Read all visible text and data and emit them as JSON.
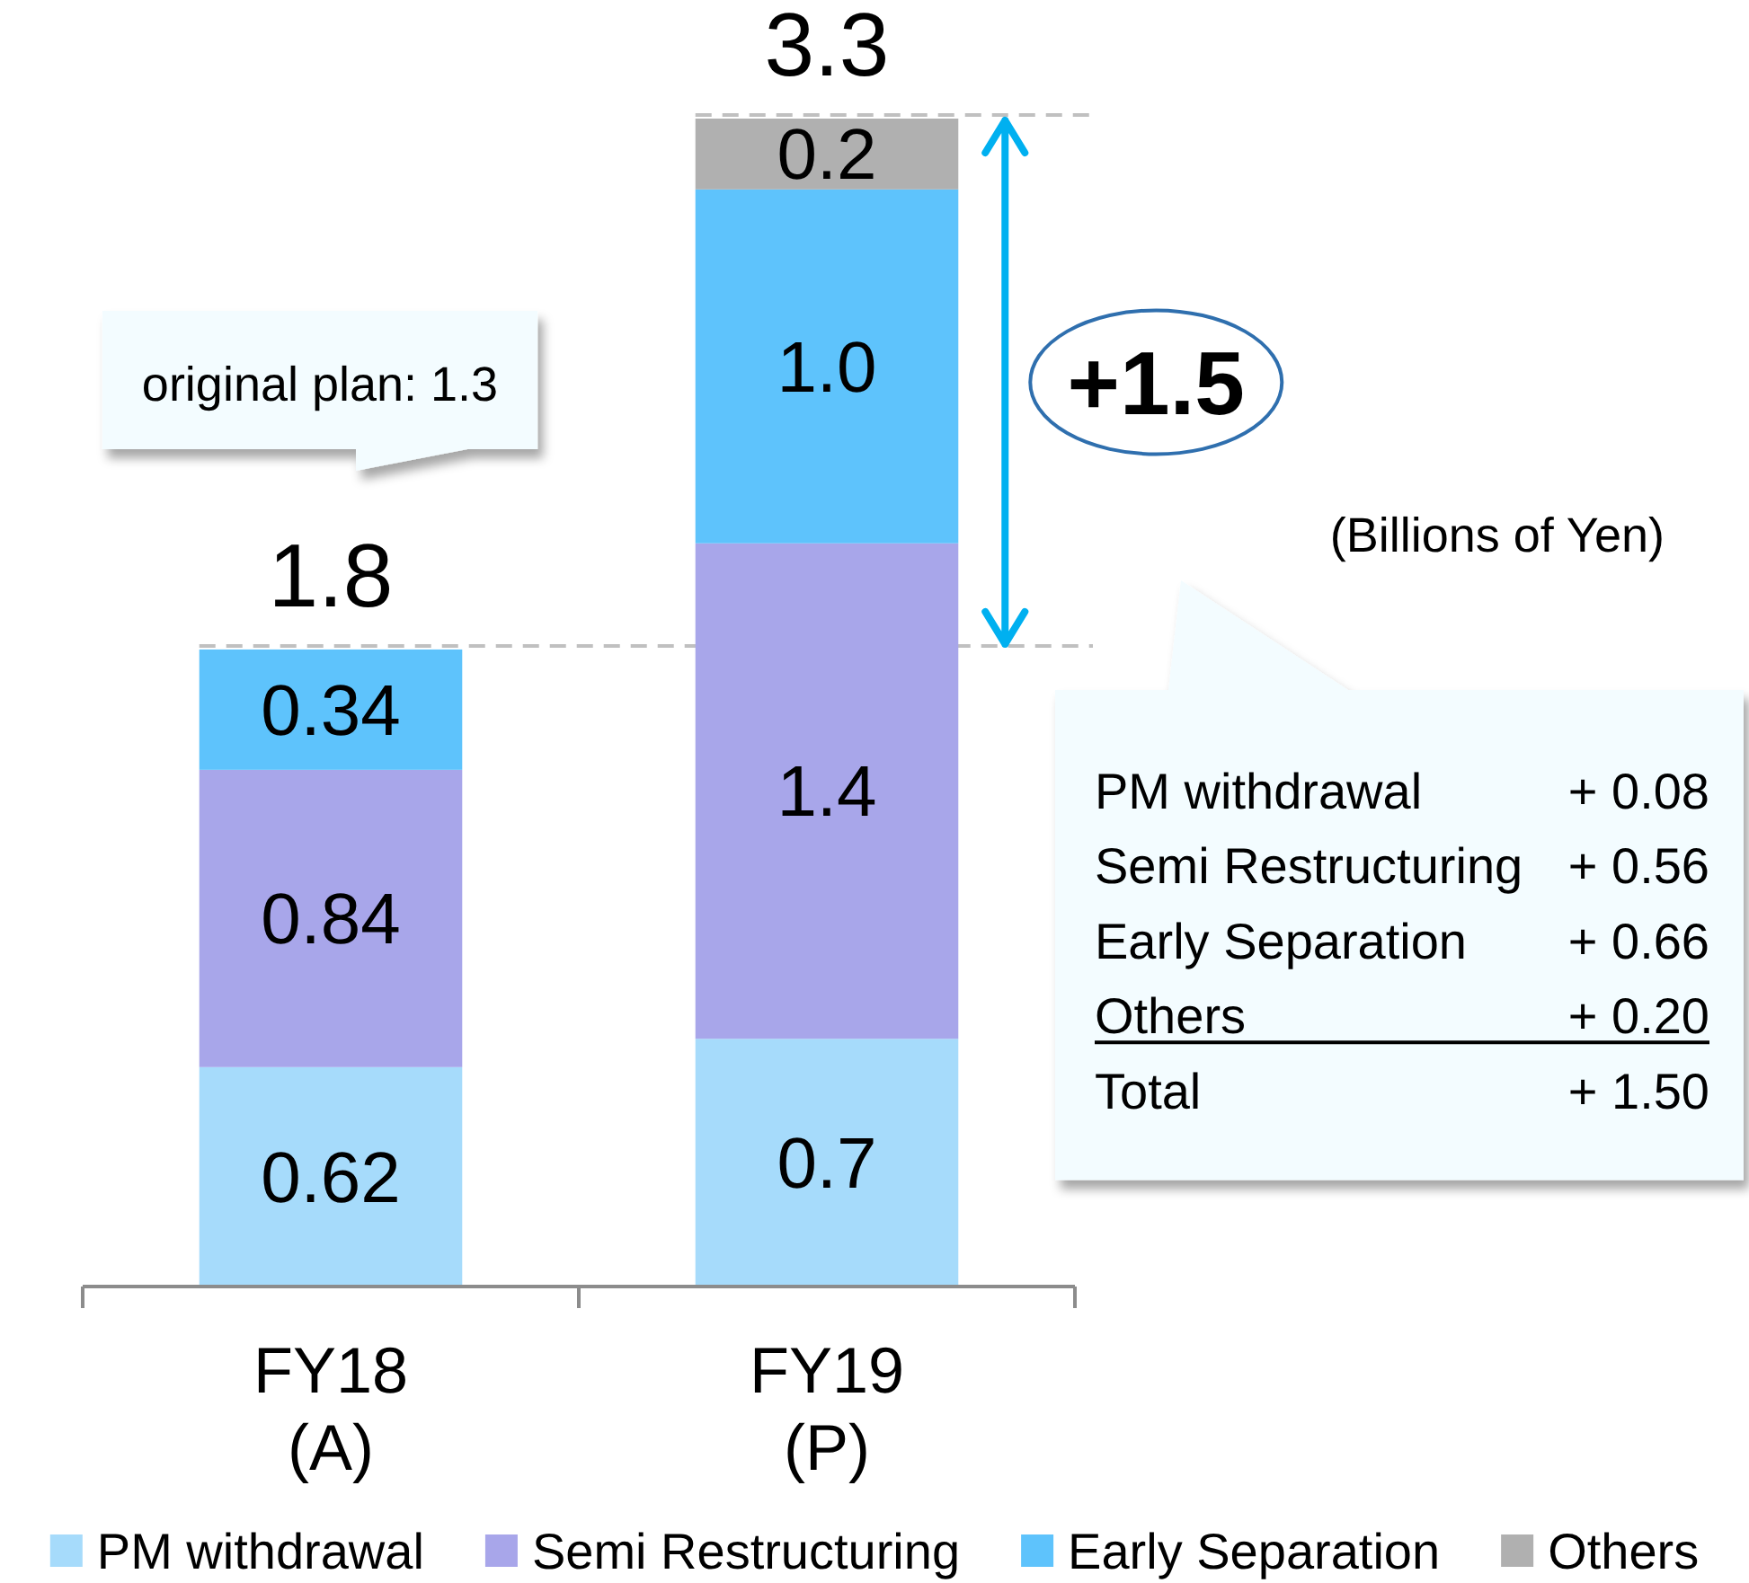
{
  "chart_data": {
    "type": "bar",
    "stacked": true,
    "categories": [
      "FY18\n(A)",
      "FY19\n(P)"
    ],
    "series": [
      {
        "name": "PM withdrawal",
        "color": "#a6dbfb",
        "values": [
          0.62,
          0.7
        ],
        "value_labels": [
          "0.62",
          "0.7"
        ]
      },
      {
        "name": "Semi Restructuring",
        "color": "#a8a6ea",
        "values": [
          0.84,
          1.4
        ],
        "value_labels": [
          "0.84",
          "1.4"
        ]
      },
      {
        "name": "Early Separation",
        "color": "#5ec3fc",
        "values": [
          0.34,
          1.0
        ],
        "value_labels": [
          "0.34",
          "1.0"
        ]
      },
      {
        "name": "Others",
        "color": "#b0b0b0",
        "values": [
          null,
          0.2
        ],
        "value_labels": [
          null,
          "0.2"
        ]
      }
    ],
    "totals": [
      "1.8",
      "3.3"
    ],
    "legend": "bottom",
    "ref_lines": [
      {
        "axis": "y",
        "value": 1.8,
        "color": "#c0c0c0",
        "line_style": "dashed"
      },
      {
        "axis": "y",
        "value": 3.3,
        "color": "#c0c0c0",
        "line_style": "dashed"
      }
    ],
    "annotations": [
      "original plan: 1.3",
      "+1.5",
      "(Billions of Yen)",
      "PM withdrawal",
      "+ 0.08",
      "Semi Restructuring",
      "+ 0.56",
      "Early Separation",
      "+ 0.66",
      "Others",
      "+ 0.20",
      "Total",
      "+ 1.50"
    ]
  }
}
